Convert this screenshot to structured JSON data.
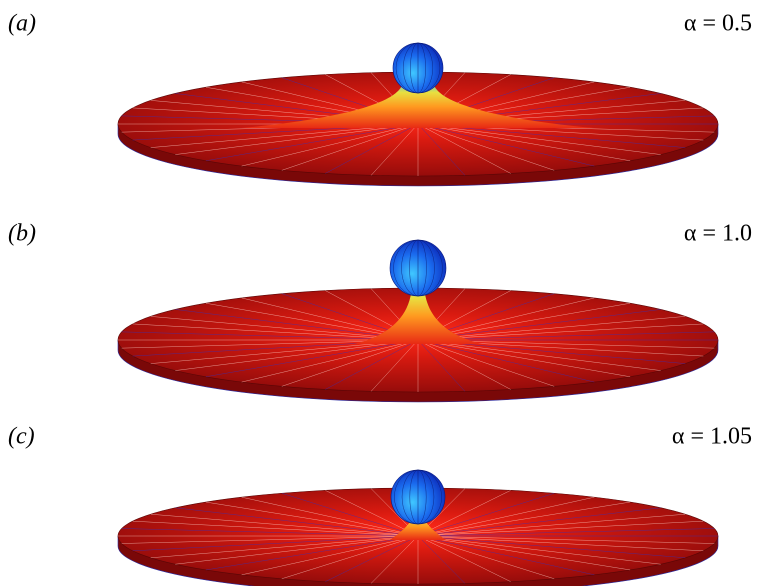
{
  "panels": [
    {
      "label": "(a)",
      "parameter": "α = 0.5"
    },
    {
      "label": "(b)",
      "parameter": "α = 1.0"
    },
    {
      "label": "(c)",
      "parameter": "α = 1.05"
    }
  ]
}
